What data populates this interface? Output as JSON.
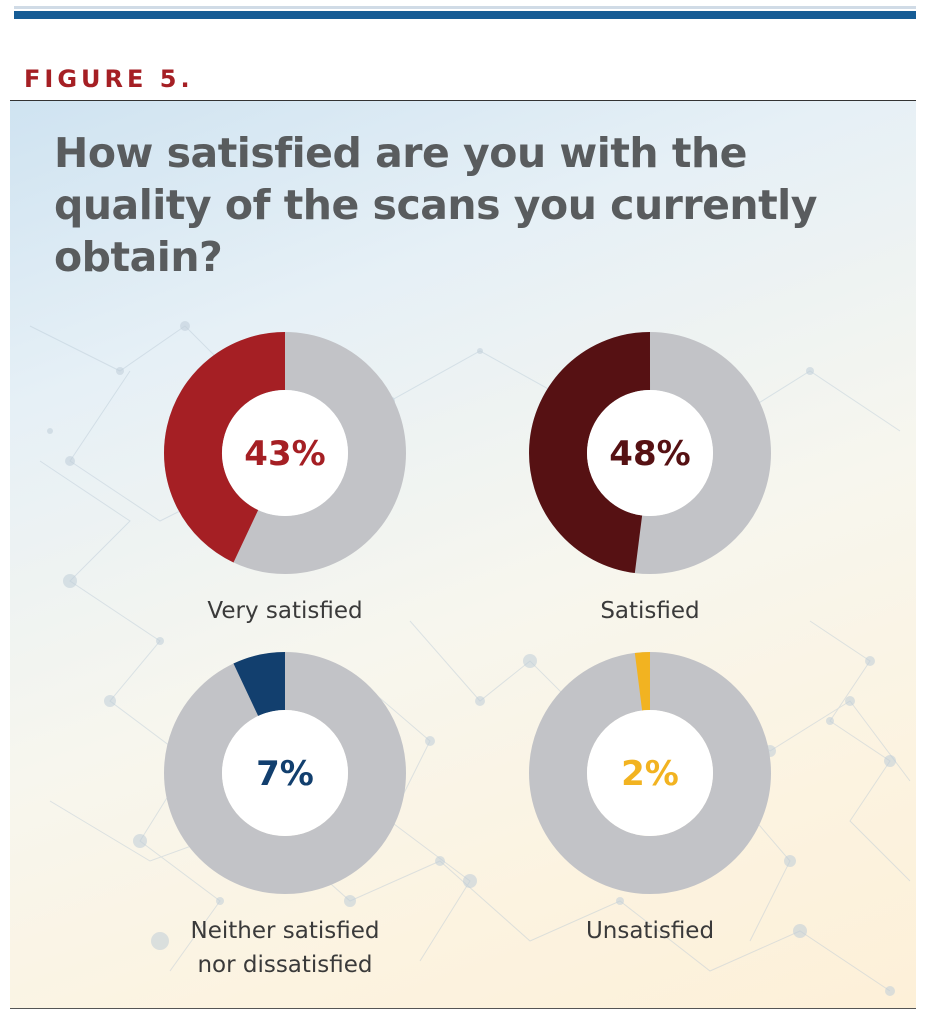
{
  "figure_label": "FIGURE 5.",
  "chart_data": {
    "type": "pie",
    "title": "How satisfied are you with the quality of the scans you currently obtain?",
    "track_color": "#c2c3c7",
    "items": [
      {
        "label": [
          "Very satisfied"
        ],
        "percent": 43,
        "percent_text": "43%",
        "color": "#a51f24"
      },
      {
        "label": [
          "Satisfied"
        ],
        "percent": 48,
        "percent_text": "48%",
        "color": "#561113"
      },
      {
        "label": [
          "Neither satisfied",
          "nor dissatisfied"
        ],
        "percent": 7,
        "percent_text": "7%",
        "color": "#123f6e"
      },
      {
        "label": [
          "Unsatisfied"
        ],
        "percent": 2,
        "percent_text": "2%",
        "color": "#f2b321"
      }
    ]
  }
}
